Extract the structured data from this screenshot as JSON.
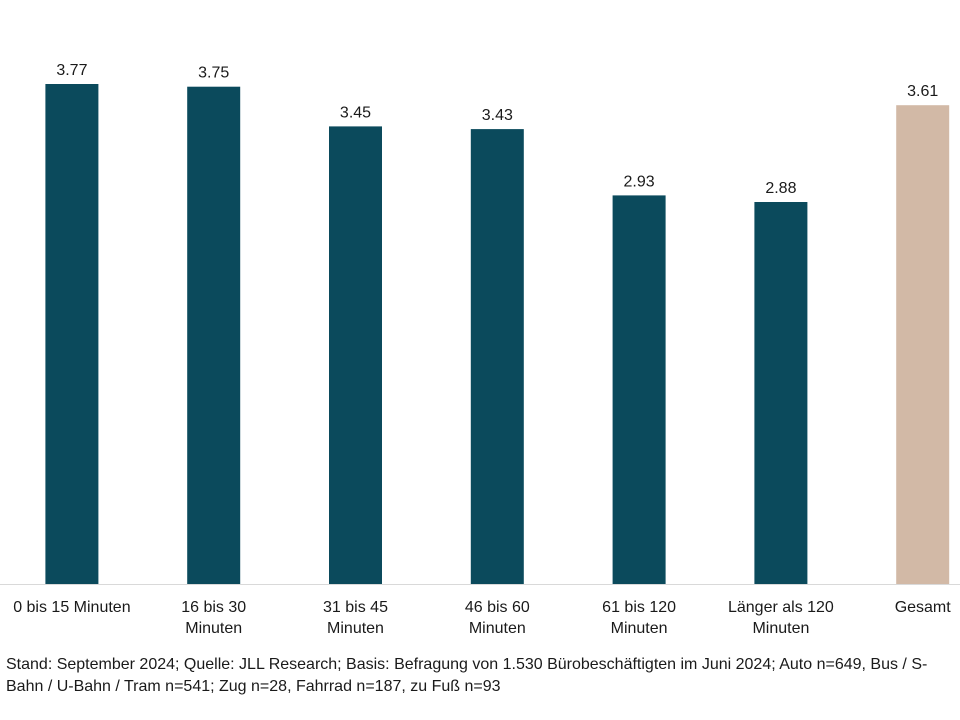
{
  "chart_data": {
    "type": "bar",
    "categories": [
      [
        "0 bis 15 Minuten"
      ],
      [
        "16 bis 30",
        "Minuten"
      ],
      [
        "31 bis 45",
        "Minuten"
      ],
      [
        "46 bis 60",
        "Minuten"
      ],
      [
        "61 bis 120",
        "Minuten"
      ],
      [
        "Länger als 120",
        "Minuten"
      ],
      [
        "Gesamt"
      ]
    ],
    "values": [
      3.77,
      3.75,
      3.45,
      3.43,
      2.93,
      2.88,
      3.61
    ],
    "value_labels": [
      "3.77",
      "3.75",
      "3.45",
      "3.43",
      "2.93",
      "2.88",
      "3.61"
    ],
    "bar_colors": [
      "#0b4a5c",
      "#0b4a5c",
      "#0b4a5c",
      "#0b4a5c",
      "#0b4a5c",
      "#0b4a5c",
      "#d2b9a6"
    ],
    "ylim": [
      0,
      3.77
    ],
    "axis_color": "#d9d9d9",
    "grid": false,
    "legend": false
  },
  "footnote": "Stand: September 2024; Quelle: JLL Research; Basis: Befragung von 1.530 Bürobeschäftigten im Juni 2024; Auto n=649, Bus / S-Bahn / U-Bahn / Tram n=541; Zug n=28, Fahrrad n=187, zu Fuß n=93"
}
